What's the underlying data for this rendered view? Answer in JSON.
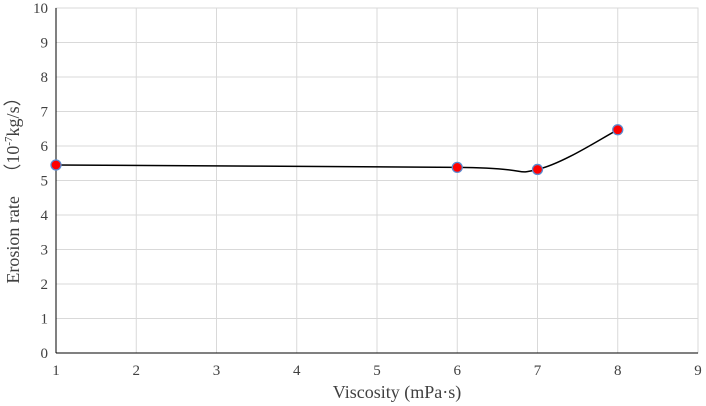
{
  "chart_data": {
    "type": "scatter",
    "title": "",
    "xlabel": "Viscosity (mPa·s)",
    "ylabel_main": "Erosion rate",
    "ylabel_unit_prefix": "10",
    "ylabel_unit_exp": "-7",
    "ylabel_unit_suffix": "kg/s",
    "xlim": [
      1,
      9
    ],
    "ylim": [
      0,
      10
    ],
    "x_ticks": [
      1,
      2,
      3,
      4,
      5,
      6,
      7,
      8,
      9
    ],
    "y_ticks": [
      0,
      1,
      2,
      3,
      4,
      5,
      6,
      7,
      8,
      9,
      10
    ],
    "grid": true,
    "smooth_line": true,
    "series": [
      {
        "x": [
          1,
          6,
          7,
          8
        ],
        "y": [
          5.45,
          5.38,
          5.32,
          6.47
        ],
        "marker_color": "#ff0000",
        "marker_edge_color": "#5b8bd0",
        "line_color": "#000000"
      }
    ]
  }
}
